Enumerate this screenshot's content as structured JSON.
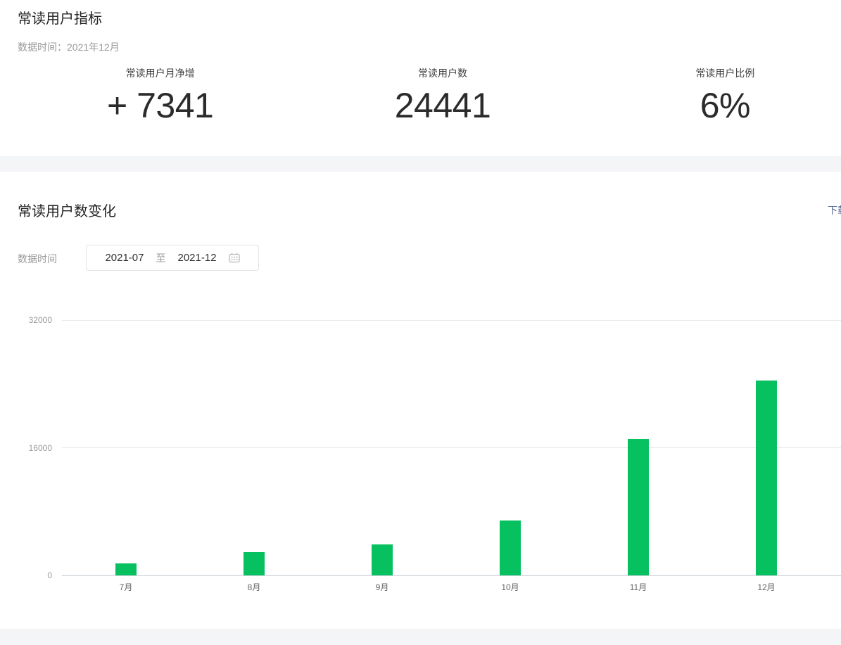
{
  "metrics_section": {
    "title": "常读用户指标",
    "data_time_label": "数据时间：",
    "data_time_value": "2021年12月",
    "stats": [
      {
        "label": "常读用户月净增",
        "value": "+ 7341"
      },
      {
        "label": "常读用户数",
        "value": "24441"
      },
      {
        "label": "常读用户比例",
        "value": "6%"
      }
    ]
  },
  "chart_section": {
    "title": "常读用户数变化",
    "download_label": "下载",
    "filter_label": "数据时间",
    "date_range": {
      "start": "2021-07",
      "separator": "至",
      "end": "2021-12",
      "icon": "calendar-icon"
    }
  },
  "chart_data": {
    "type": "bar",
    "title": "常读用户数变化",
    "categories": [
      "7月",
      "8月",
      "9月",
      "10月",
      "11月",
      "12月"
    ],
    "values": [
      1500,
      2900,
      3900,
      6900,
      17100,
      24441
    ],
    "xlabel": "",
    "ylabel": "",
    "ylim": [
      0,
      32000
    ],
    "yticks": [
      0,
      16000,
      32000
    ],
    "grid": true,
    "legend": "none",
    "bar_color": "#07c160"
  },
  "colors": {
    "accent_green": "#07c160",
    "link_blue": "#576b95",
    "divider_gray": "#f4f5f7"
  }
}
